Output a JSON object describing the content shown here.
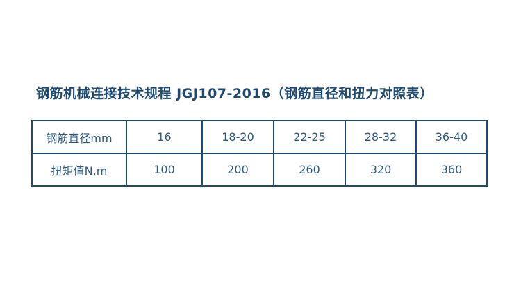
{
  "title": "钢筋机械连接技术规程 JGJ107-2016（钢筋直径和扭力对照表）",
  "table": {
    "rows": [
      {
        "label": "钢筋直径mm",
        "values": [
          "16",
          "18-20",
          "22-25",
          "28-32",
          "36-40"
        ]
      },
      {
        "label": "扭矩值N.m",
        "values": [
          "100",
          "200",
          "260",
          "320",
          "360"
        ]
      }
    ]
  },
  "colors": {
    "title": "#1f4b73",
    "border": "#1f4b73",
    "text": "#2c5a86"
  }
}
